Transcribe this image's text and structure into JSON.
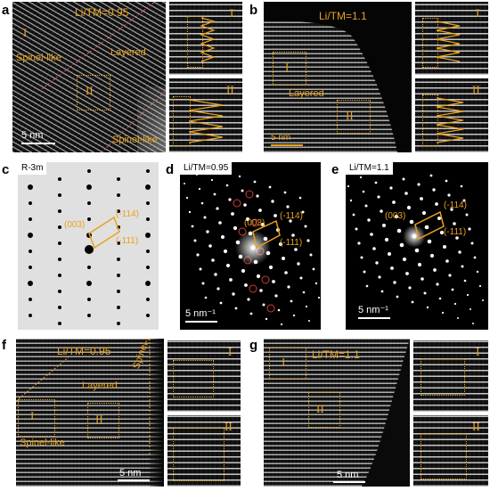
{
  "panel_a": {
    "letter": "a",
    "title": "Li/TM=0.95",
    "region_layered": "Layered",
    "region_spinel_top": "Spinel-like",
    "region_spinel_bottom": "Spinel-like",
    "box_I": "I",
    "box_II": "II",
    "inset_I": "I",
    "inset_II": "II",
    "scale": "5 nm"
  },
  "panel_b": {
    "letter": "b",
    "title": "Li/TM=1.1",
    "region_layered": "Layered",
    "box_I": "I",
    "box_II": "II",
    "inset_I": "I",
    "inset_II": "II",
    "scale": "5 nm"
  },
  "panel_c": {
    "letter": "c",
    "tag": "R-3m",
    "label_003": "(003)",
    "label_114": "(-114)",
    "label_111": "(-111)"
  },
  "panel_d": {
    "letter": "d",
    "tag": "Li/TM=0.95",
    "label_003": "(003)",
    "label_114": "(-114)",
    "label_111": "(-111)",
    "scale": "5 nm⁻¹"
  },
  "panel_e": {
    "letter": "e",
    "tag": "Li/TM=1.1",
    "label_003": "(003)",
    "label_114": "(-114)",
    "label_111": "(-111)",
    "scale": "5 nm⁻¹"
  },
  "panel_f": {
    "letter": "f",
    "title": "Li/TM=0.95",
    "region_layered": "Layered",
    "region_spinel_right": "Spinel-like",
    "region_spinel_left": "Spinel-like",
    "box_I": "I",
    "box_II": "II",
    "inset_I": "I",
    "inset_II": "II",
    "scale": "5 nm"
  },
  "panel_g": {
    "letter": "g",
    "title": "Li/TM=1.1",
    "box_I": "I",
    "box_II": "II",
    "inset_I": "I",
    "inset_II": "II",
    "scale": "5 nm"
  },
  "colors": {
    "annotation": "#e8a21f",
    "ring": "#d03a3a",
    "background": "#ffffff"
  }
}
